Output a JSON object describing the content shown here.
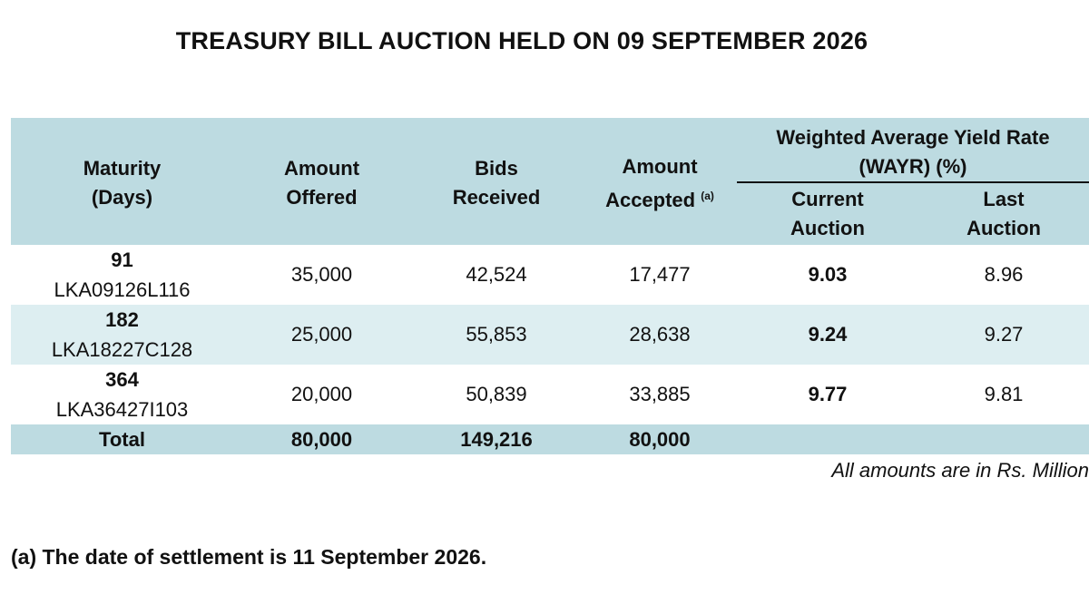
{
  "title": "TREASURY BILL AUCTION HELD ON 09 SEPTEMBER 2026",
  "headers": {
    "maturity_line1": "Maturity",
    "maturity_line2": "(Days)",
    "offered_line1": "Amount",
    "offered_line2": "Offered",
    "bids_line1": "Bids",
    "bids_line2": "Received",
    "accepted_line1": "Amount",
    "accepted_line2": "Accepted",
    "accepted_marker": "(a)",
    "wayr_line1": "Weighted Average Yield Rate",
    "wayr_line2": "(WAYR) (%)",
    "current_line1": "Current",
    "current_line2": "Auction",
    "last_line1": "Last",
    "last_line2": "Auction"
  },
  "rows": [
    {
      "days": "91",
      "code": "LKA09126L116",
      "offered": "35,000",
      "bids": "42,524",
      "accepted": "17,477",
      "current": "9.03",
      "last": "8.96"
    },
    {
      "days": "182",
      "code": "LKA18227C128",
      "offered": "25,000",
      "bids": "55,853",
      "accepted": "28,638",
      "current": "9.24",
      "last": "9.27"
    },
    {
      "days": "364",
      "code": "LKA36427I103",
      "offered": "20,000",
      "bids": "50,839",
      "accepted": "33,885",
      "current": "9.77",
      "last": "9.81"
    }
  ],
  "total": {
    "label": "Total",
    "offered": "80,000",
    "bids": "149,216",
    "accepted": "80,000"
  },
  "units_note": "All amounts are in Rs. Million",
  "footnote": "(a) The date of settlement is 11 September 2026.",
  "colors": {
    "header_bg": "#bddbe1",
    "row_shade": "#ddeef1"
  }
}
